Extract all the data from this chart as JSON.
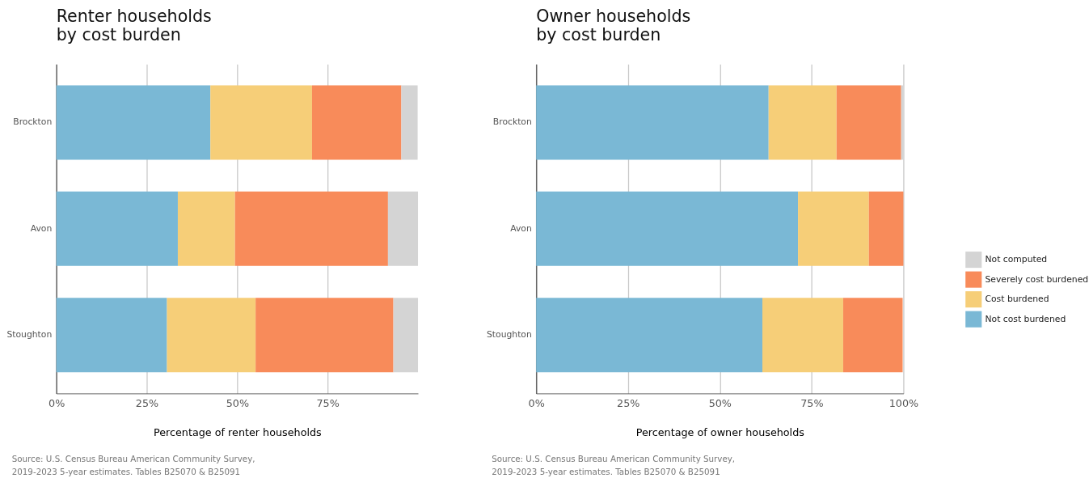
{
  "chart_data": [
    {
      "type": "bar",
      "orientation": "horizontal",
      "stacked": true,
      "title": "Renter households\nby cost burden",
      "xlabel": "Percentage of renter households",
      "categories": [
        "Brockton",
        "Avon",
        "Stoughton"
      ],
      "series": [
        {
          "name": "Not cost burdened",
          "color": "#7ab8d5",
          "values": [
            42.6,
            33.6,
            30.6
          ]
        },
        {
          "name": "Cost burdened",
          "color": "#f6ce78",
          "values": [
            28.1,
            15.8,
            24.5
          ]
        },
        {
          "name": "Severely cost burdened",
          "color": "#f88b5a",
          "values": [
            24.7,
            42.3,
            38.1
          ]
        },
        {
          "name": "Not computed",
          "color": "#d4d4d4",
          "values": [
            4.5,
            8.3,
            6.8
          ]
        }
      ],
      "xlim": [
        0,
        100
      ],
      "xticks": [
        {
          "value": 0,
          "label": "0%"
        },
        {
          "value": 25,
          "label": "25%"
        },
        {
          "value": 50,
          "label": "50%"
        },
        {
          "value": 75,
          "label": "75%"
        }
      ],
      "grid": "x",
      "legend": "right",
      "annotations": [
        "Source: U.S. Census Bureau American Community Survey,\n2019-2023 5-year estimates. Tables B25070 & B25091"
      ]
    },
    {
      "type": "bar",
      "orientation": "horizontal",
      "stacked": true,
      "title": "Owner households\nby cost burden",
      "xlabel": "Percentage of owner households",
      "categories": [
        "Brockton",
        "Avon",
        "Stoughton"
      ],
      "series": [
        {
          "name": "Not cost burdened",
          "color": "#7ab8d5",
          "values": [
            63.3,
            71.3,
            61.6
          ]
        },
        {
          "name": "Cost burdened",
          "color": "#f6ce78",
          "values": [
            18.5,
            19.3,
            22.0
          ]
        },
        {
          "name": "Severely cost burdened",
          "color": "#f88b5a",
          "values": [
            17.6,
            9.4,
            16.2
          ]
        },
        {
          "name": "Not computed",
          "color": "#d4d4d4",
          "values": [
            0.6,
            0.0,
            null
          ]
        }
      ],
      "xlim": [
        0,
        100
      ],
      "xticks": [
        {
          "value": 0,
          "label": "0%"
        },
        {
          "value": 25,
          "label": "25%"
        },
        {
          "value": 50,
          "label": "50%"
        },
        {
          "value": 75,
          "label": "75%"
        },
        {
          "value": 100,
          "label": "100%"
        }
      ],
      "grid": "x",
      "legend": "right",
      "annotations": [
        "Source: U.S. Census Bureau American Community Survey,\n2019-2023 5-year estimates. Tables B25070 & B25091"
      ]
    }
  ]
}
